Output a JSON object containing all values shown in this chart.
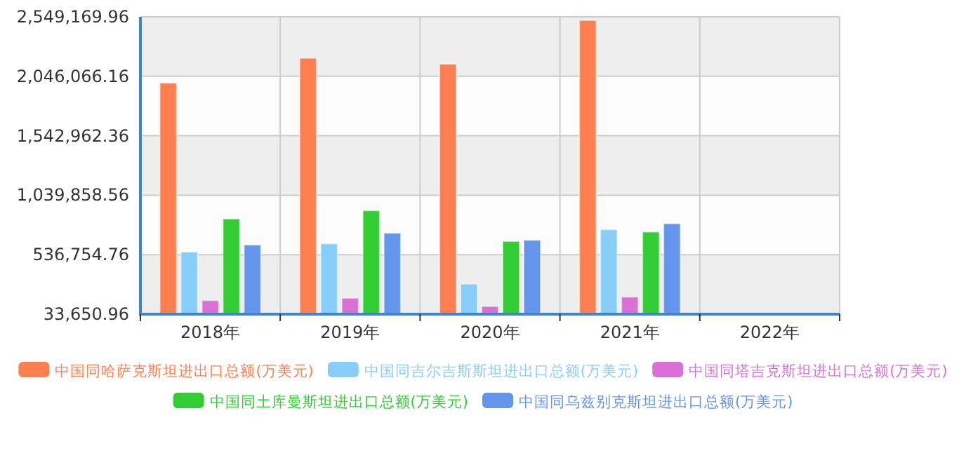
{
  "chart_data": {
    "type": "bar",
    "categories": [
      "2018年",
      "2019年",
      "2020年",
      "2021年",
      "2022年"
    ],
    "series": [
      {
        "name": "中国同哈萨克斯坦进出口总额(万美元)",
        "color": "#ff7f50",
        "values": [
          1990000,
          2200000,
          2150000,
          2520000,
          null
        ]
      },
      {
        "name": "中国同吉尔吉斯斯坦进出口总额(万美元)",
        "color": "#87cefa",
        "values": [
          560000,
          630000,
          290000,
          750000,
          null
        ]
      },
      {
        "name": "中国同塔吉克斯坦进出口总额(万美元)",
        "color": "#da70d6",
        "values": [
          150000,
          170000,
          100000,
          180000,
          null
        ]
      },
      {
        "name": "中国同土库曼斯坦进出口总额(万美元)",
        "color": "#32cd32",
        "values": [
          840000,
          910000,
          650000,
          730000,
          null
        ]
      },
      {
        "name": "中国同乌兹别克斯坦进出口总额(万美元)",
        "color": "#6495ed",
        "values": [
          620000,
          720000,
          660000,
          800000,
          null
        ]
      }
    ],
    "ylim": [
      33650.96,
      2549169.96
    ],
    "yticks": [
      {
        "value": 33650.96,
        "label": "33,650.96"
      },
      {
        "value": 536754.76,
        "label": "536,754.76"
      },
      {
        "value": 1039858.56,
        "label": "1,039,858.56"
      },
      {
        "value": 1542962.36,
        "label": "1,542,962.36"
      },
      {
        "value": 2046066.16,
        "label": "2,046,066.16"
      },
      {
        "value": 2549169.96,
        "label": "2,549,169.96"
      }
    ],
    "grid": true,
    "legend": "bottom"
  }
}
